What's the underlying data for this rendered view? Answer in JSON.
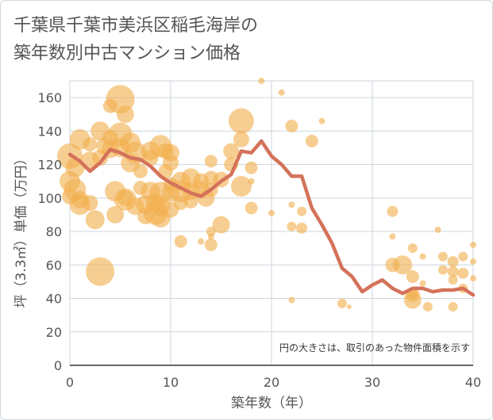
{
  "chart_data": {
    "type": "scatter",
    "title": "千葉県千葉市美浜区稲毛海岸の\n築年数別中古マンション価格",
    "xlabel": "築年数（年）",
    "ylabel": "坪（3.3㎡）単価（万円）",
    "xlim": [
      0,
      40
    ],
    "ylim": [
      0,
      170
    ],
    "x_ticks": [
      0,
      10,
      20,
      30,
      40
    ],
    "y_ticks": [
      0,
      20,
      40,
      60,
      80,
      100,
      120,
      140,
      160
    ],
    "grid": true,
    "annotation": "円の大きさは、取引のあった物件面積を示す",
    "colors": {
      "bubble": "#f2b04f",
      "line": "#d4725a",
      "grid": "#cdd6dd",
      "axis": "#333333"
    },
    "series": [
      {
        "type": "line",
        "x": [
          0,
          1,
          2,
          3,
          4,
          5,
          6,
          7,
          8,
          9,
          10,
          11,
          12,
          13,
          14,
          15,
          16,
          17,
          18,
          19,
          20,
          21,
          22,
          23,
          24,
          25,
          26,
          27,
          28,
          29,
          30,
          31,
          32,
          33,
          34,
          35,
          36,
          37,
          38,
          39,
          40
        ],
        "y": [
          126,
          122,
          116,
          121,
          129,
          127,
          124,
          123,
          119,
          113,
          109,
          106,
          103,
          101,
          105,
          110,
          114,
          128,
          127,
          134,
          125,
          120,
          113,
          113,
          94,
          84,
          73,
          58,
          53,
          44,
          48,
          51,
          46,
          43,
          46,
          46,
          44,
          45,
          45,
          46,
          42
        ]
      },
      {
        "type": "scatter",
        "points": [
          {
            "x": 0,
            "y": 125,
            "s": 16
          },
          {
            "x": 0,
            "y": 110,
            "s": 13
          },
          {
            "x": 0,
            "y": 101,
            "s": 10
          },
          {
            "x": 0.5,
            "y": 118,
            "s": 12
          },
          {
            "x": 0.5,
            "y": 105,
            "s": 14
          },
          {
            "x": 1,
            "y": 135,
            "s": 13
          },
          {
            "x": 1,
            "y": 96,
            "s": 13
          },
          {
            "x": 1,
            "y": 99,
            "s": 11
          },
          {
            "x": 2,
            "y": 132,
            "s": 9
          },
          {
            "x": 2,
            "y": 122,
            "s": 12
          },
          {
            "x": 2,
            "y": 97,
            "s": 10
          },
          {
            "x": 2.5,
            "y": 87,
            "s": 12
          },
          {
            "x": 3,
            "y": 140,
            "s": 12
          },
          {
            "x": 3,
            "y": 124,
            "s": 10
          },
          {
            "x": 3,
            "y": 56,
            "s": 18
          },
          {
            "x": 3.5,
            "y": 131,
            "s": 11
          },
          {
            "x": 4,
            "y": 136,
            "s": 10
          },
          {
            "x": 4,
            "y": 155,
            "s": 9
          },
          {
            "x": 4,
            "y": 129,
            "s": 11
          },
          {
            "x": 4.5,
            "y": 104,
            "s": 13
          },
          {
            "x": 4.5,
            "y": 90,
            "s": 11
          },
          {
            "x": 5,
            "y": 159,
            "s": 18
          },
          {
            "x": 5,
            "y": 138,
            "s": 15
          },
          {
            "x": 5,
            "y": 130,
            "s": 12
          },
          {
            "x": 5.5,
            "y": 150,
            "s": 11
          },
          {
            "x": 5.5,
            "y": 99,
            "s": 14
          },
          {
            "x": 5.5,
            "y": 100,
            "s": 10
          },
          {
            "x": 6,
            "y": 133,
            "s": 13
          },
          {
            "x": 6,
            "y": 121,
            "s": 12
          },
          {
            "x": 6.5,
            "y": 127,
            "s": 14
          },
          {
            "x": 6.5,
            "y": 95,
            "s": 11
          },
          {
            "x": 7,
            "y": 116,
            "s": 9
          },
          {
            "x": 7,
            "y": 106,
            "s": 9
          },
          {
            "x": 7.5,
            "y": 96,
            "s": 12
          },
          {
            "x": 7.5,
            "y": 89,
            "s": 10
          },
          {
            "x": 8,
            "y": 128,
            "s": 12
          },
          {
            "x": 8,
            "y": 124,
            "s": 10
          },
          {
            "x": 8,
            "y": 104,
            "s": 12
          },
          {
            "x": 8.5,
            "y": 97,
            "s": 12
          },
          {
            "x": 8.5,
            "y": 91,
            "s": 15
          },
          {
            "x": 9,
            "y": 131,
            "s": 14
          },
          {
            "x": 9,
            "y": 103,
            "s": 14
          },
          {
            "x": 9,
            "y": 95,
            "s": 12
          },
          {
            "x": 9,
            "y": 88,
            "s": 12
          },
          {
            "x": 9.5,
            "y": 128,
            "s": 10
          },
          {
            "x": 9.5,
            "y": 116,
            "s": 9
          },
          {
            "x": 10,
            "y": 127,
            "s": 11
          },
          {
            "x": 10,
            "y": 121,
            "s": 10
          },
          {
            "x": 10,
            "y": 108,
            "s": 9
          },
          {
            "x": 10,
            "y": 103,
            "s": 11
          },
          {
            "x": 10,
            "y": 93,
            "s": 10
          },
          {
            "x": 11,
            "y": 110,
            "s": 12
          },
          {
            "x": 11,
            "y": 104,
            "s": 14
          },
          {
            "x": 11,
            "y": 97,
            "s": 9
          },
          {
            "x": 11,
            "y": 74,
            "s": 8
          },
          {
            "x": 12,
            "y": 112,
            "s": 12
          },
          {
            "x": 12,
            "y": 104,
            "s": 11
          },
          {
            "x": 12,
            "y": 98,
            "s": 9
          },
          {
            "x": 13,
            "y": 110,
            "s": 10
          },
          {
            "x": 13,
            "y": 105,
            "s": 11
          },
          {
            "x": 13,
            "y": 74,
            "s": 4
          },
          {
            "x": 13.5,
            "y": 100,
            "s": 11
          },
          {
            "x": 14,
            "y": 122,
            "s": 8
          },
          {
            "x": 14,
            "y": 112,
            "s": 9
          },
          {
            "x": 14,
            "y": 105,
            "s": 9
          },
          {
            "x": 14,
            "y": 80,
            "s": 6
          },
          {
            "x": 14,
            "y": 72,
            "s": 8
          },
          {
            "x": 14,
            "y": 77,
            "s": 4
          },
          {
            "x": 15,
            "y": 111,
            "s": 10
          },
          {
            "x": 15,
            "y": 84,
            "s": 11
          },
          {
            "x": 16,
            "y": 128,
            "s": 10
          },
          {
            "x": 16,
            "y": 120,
            "s": 9
          },
          {
            "x": 17,
            "y": 146,
            "s": 16
          },
          {
            "x": 17,
            "y": 135,
            "s": 10
          },
          {
            "x": 17,
            "y": 107,
            "s": 13
          },
          {
            "x": 18,
            "y": 118,
            "s": 8
          },
          {
            "x": 18,
            "y": 110,
            "s": 4
          },
          {
            "x": 18,
            "y": 94,
            "s": 8
          },
          {
            "x": 19,
            "y": 170,
            "s": 4
          },
          {
            "x": 20,
            "y": 91,
            "s": 4
          },
          {
            "x": 21,
            "y": 163,
            "s": 4
          },
          {
            "x": 22,
            "y": 143,
            "s": 8
          },
          {
            "x": 22,
            "y": 96,
            "s": 4
          },
          {
            "x": 22,
            "y": 83,
            "s": 6
          },
          {
            "x": 22,
            "y": 39,
            "s": 4
          },
          {
            "x": 23,
            "y": 92,
            "s": 6
          },
          {
            "x": 23,
            "y": 82,
            "s": 7
          },
          {
            "x": 24,
            "y": 134,
            "s": 8
          },
          {
            "x": 25,
            "y": 146,
            "s": 4
          },
          {
            "x": 27,
            "y": 37,
            "s": 6
          },
          {
            "x": 27.7,
            "y": 35,
            "s": 3
          },
          {
            "x": 32,
            "y": 92,
            "s": 7
          },
          {
            "x": 32,
            "y": 77,
            "s": 4
          },
          {
            "x": 32,
            "y": 60,
            "s": 9
          },
          {
            "x": 33,
            "y": 60,
            "s": 12
          },
          {
            "x": 34,
            "y": 70,
            "s": 6
          },
          {
            "x": 34,
            "y": 53,
            "s": 8
          },
          {
            "x": 34,
            "y": 43,
            "s": 6
          },
          {
            "x": 34,
            "y": 39,
            "s": 11
          },
          {
            "x": 34,
            "y": 42,
            "s": 9
          },
          {
            "x": 35,
            "y": 65,
            "s": 4
          },
          {
            "x": 35,
            "y": 49,
            "s": 4
          },
          {
            "x": 35.5,
            "y": 35,
            "s": 6
          },
          {
            "x": 36.5,
            "y": 81,
            "s": 4
          },
          {
            "x": 37,
            "y": 65,
            "s": 6
          },
          {
            "x": 37,
            "y": 57,
            "s": 6
          },
          {
            "x": 38,
            "y": 62,
            "s": 7
          },
          {
            "x": 38,
            "y": 56,
            "s": 7
          },
          {
            "x": 38,
            "y": 51,
            "s": 6
          },
          {
            "x": 38,
            "y": 35,
            "s": 6
          },
          {
            "x": 39,
            "y": 65,
            "s": 6
          },
          {
            "x": 39,
            "y": 55,
            "s": 7
          },
          {
            "x": 39,
            "y": 46,
            "s": 6
          },
          {
            "x": 40,
            "y": 72,
            "s": 4
          },
          {
            "x": 40,
            "y": 62,
            "s": 4
          },
          {
            "x": 40,
            "y": 52,
            "s": 4
          }
        ]
      }
    ]
  }
}
